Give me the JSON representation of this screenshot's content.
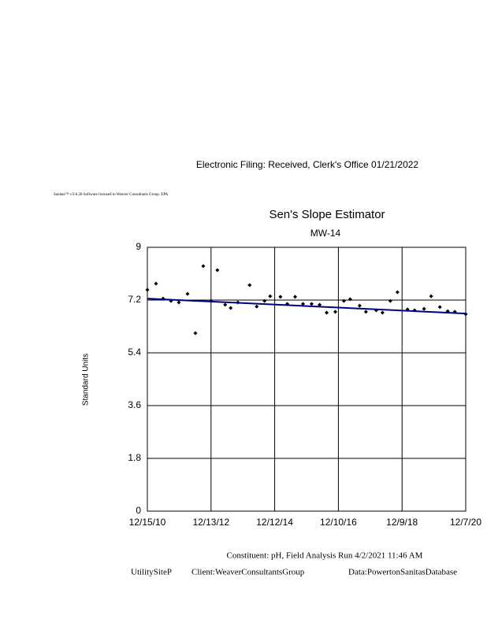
{
  "filing_stamp": "Electronic Filing: Received, Clerk's Office 01/21/2022",
  "license_line": "Sanitas™ v.9.6.28 Software licensed to Weaver Consultants Group. EPA",
  "chart_data": {
    "type": "scatter",
    "title": "Sen's Slope Estimator",
    "subtitle": "MW-14",
    "y_label": "Standard Units",
    "x": [
      "12/15/10",
      "3/24/11",
      "6/13/11",
      "9/11/11",
      "12/10/11",
      "3/19/12",
      "6/17/12",
      "9/15/12",
      "12/13/12",
      "2/23/13",
      "5/24/13",
      "7/26/13",
      "10/16/13",
      "2/28/14",
      "5/20/14",
      "8/18/14",
      "10/21/14",
      "2/15/15",
      "5/5/15",
      "8/3/15",
      "11/1/15",
      "2/8/16",
      "5/9/16",
      "7/29/16",
      "11/5/16",
      "2/11/17",
      "4/24/17",
      "8/10/17",
      "10/21/17",
      "2/16/18",
      "4/29/18",
      "7/28/18",
      "10/17/18",
      "2/10/19",
      "5/2/19",
      "8/18/19",
      "11/7/19",
      "2/15/20",
      "5/15/20",
      "8/4/20",
      "12/7/20"
    ],
    "values": [
      7.55,
      7.76,
      7.25,
      7.17,
      7.12,
      7.41,
      6.07,
      8.36,
      7.17,
      8.22,
      7.04,
      6.93,
      7.12,
      7.71,
      6.98,
      7.17,
      7.33,
      7.31,
      7.07,
      7.31,
      7.07,
      7.07,
      7.04,
      6.77,
      6.8,
      7.17,
      7.23,
      7.01,
      6.8,
      6.85,
      6.77,
      7.17,
      7.47,
      6.88,
      6.85,
      6.9,
      7.33,
      6.96,
      6.82,
      6.8,
      6.72
    ],
    "color": "#000000",
    "trend": {
      "x": [
        "12/15/10",
        "12/7/20"
      ],
      "values": [
        7.25,
        6.74
      ],
      "color": "#000080"
    },
    "xlim": [
      "12/15/10",
      "12/7/20"
    ],
    "xticks": [
      "12/15/10",
      "12/13/12",
      "12/12/14",
      "12/10/16",
      "12/9/18",
      "12/7/20"
    ],
    "ylim": [
      0,
      9
    ],
    "yticks": [
      0,
      1.8,
      3.6,
      5.4,
      7.2,
      9
    ],
    "grid": true
  },
  "footer": {
    "constituent_line": "Constituent: pH, Field Analysis Run 4/2/2021 11:46 AM",
    "site": "UtilitySiteP",
    "client": "Client:WeaverConsultantsGroup",
    "database": "Data:PowertonSanitasDatabase"
  }
}
